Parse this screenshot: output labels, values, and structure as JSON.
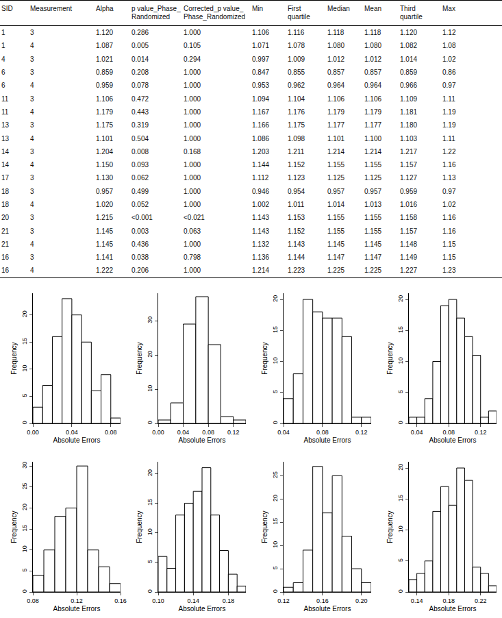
{
  "table": {
    "columns": [
      "SID",
      "Measurement",
      "Alpha",
      "p value_Phase_ Randomized",
      "Corrected_p value_ Phase_Randomized",
      "Min",
      "First quartile",
      "Median",
      "Mean",
      "Third quartile",
      "Max"
    ],
    "rows": [
      [
        "1",
        "3",
        "1.120",
        "0.286",
        "1.000",
        "1.106",
        "1.116",
        "1.118",
        "1.118",
        "1.120",
        "1.12"
      ],
      [
        "1",
        "4",
        "1.087",
        "0.005",
        "0.105",
        "1.071",
        "1.078",
        "1.080",
        "1.080",
        "1.082",
        "1.08"
      ],
      [
        "4",
        "3",
        "1.021",
        "0.014",
        "0.294",
        "0.997",
        "1.009",
        "1.012",
        "1.012",
        "1.014",
        "1.02"
      ],
      [
        "6",
        "3",
        "0.859",
        "0.208",
        "1.000",
        "0.847",
        "0.855",
        "0.857",
        "0.857",
        "0.859",
        "0.86"
      ],
      [
        "6",
        "4",
        "0.959",
        "0.078",
        "1.000",
        "0.953",
        "0.962",
        "0.964",
        "0.964",
        "0.966",
        "0.97"
      ],
      [
        "11",
        "3",
        "1.106",
        "0.472",
        "1.000",
        "1.094",
        "1.104",
        "1.106",
        "1.106",
        "1.109",
        "1.11"
      ],
      [
        "11",
        "4",
        "1.179",
        "0.443",
        "1.000",
        "1.167",
        "1.176",
        "1.179",
        "1.179",
        "1.181",
        "1.19"
      ],
      [
        "13",
        "3",
        "1.175",
        "0.319",
        "1.000",
        "1.166",
        "1.175",
        "1.177",
        "1.177",
        "1.180",
        "1.19"
      ],
      [
        "13",
        "4",
        "1.101",
        "0.504",
        "1.000",
        "1.086",
        "1.098",
        "1.101",
        "1.100",
        "1.103",
        "1.11"
      ],
      [
        "14",
        "3",
        "1.204",
        "0.008",
        "0.168",
        "1.203",
        "1.211",
        "1.214",
        "1.214",
        "1.217",
        "1.22"
      ],
      [
        "14",
        "4",
        "1.150",
        "0.093",
        "1.000",
        "1.144",
        "1.152",
        "1.155",
        "1.155",
        "1.157",
        "1.16"
      ],
      [
        "17",
        "3",
        "1.130",
        "0.062",
        "1.000",
        "1.112",
        "1.123",
        "1.125",
        "1.125",
        "1.127",
        "1.13"
      ],
      [
        "18",
        "3",
        "0.957",
        "0.499",
        "1.000",
        "0.946",
        "0.954",
        "0.957",
        "0.957",
        "0.959",
        "0.97"
      ],
      [
        "18",
        "4",
        "1.020",
        "0.052",
        "1.000",
        "1.002",
        "1.011",
        "1.014",
        "1.013",
        "1.016",
        "1.02"
      ],
      [
        "20",
        "3",
        "1.215",
        "<0.001",
        "<0.021",
        "1.143",
        "1.153",
        "1.155",
        "1.155",
        "1.158",
        "1.16"
      ],
      [
        "21",
        "3",
        "1.145",
        "0.003",
        "0.063",
        "1.143",
        "1.152",
        "1.155",
        "1.155",
        "1.157",
        "1.16"
      ],
      [
        "21",
        "4",
        "1.145",
        "0.436",
        "1.000",
        "1.132",
        "1.143",
        "1.145",
        "1.145",
        "1.148",
        "1.15"
      ],
      [
        "16",
        "3",
        "1.141",
        "0.038",
        "0.798",
        "1.136",
        "1.144",
        "1.147",
        "1.147",
        "1.149",
        "1.15"
      ],
      [
        "16",
        "4",
        "1.222",
        "0.206",
        "1.000",
        "1.214",
        "1.223",
        "1.225",
        "1.225",
        "1.227",
        "1.23"
      ]
    ]
  },
  "chart_data": [
    {
      "type": "histogram",
      "xlabel": "Absolute Errors",
      "ylabel": "Frequency",
      "color": "#ffffff",
      "bins": [
        0.0,
        0.01,
        0.02,
        0.03,
        0.04,
        0.05,
        0.06,
        0.07,
        0.08,
        0.09
      ],
      "counts": [
        3,
        7,
        16,
        23,
        20,
        15,
        6,
        9,
        1
      ],
      "xlim": [
        0,
        0.09
      ],
      "ylim": [
        0,
        24
      ],
      "xticks": [
        {
          "value": 0,
          "label": "0.00"
        },
        0.04,
        0.08
      ],
      "yticks": [
        0,
        5,
        10,
        15,
        20
      ]
    },
    {
      "type": "histogram",
      "xlabel": "Absolute Errors",
      "ylabel": "Frequency",
      "color": "#ffffff",
      "bins": [
        0.0,
        0.02,
        0.04,
        0.06,
        0.08,
        0.1,
        0.12,
        0.14
      ],
      "counts": [
        1,
        6,
        29,
        37,
        23,
        2,
        1
      ],
      "xlim": [
        0,
        0.14
      ],
      "ylim": [
        0,
        38
      ],
      "xticks": [
        {
          "value": 0,
          "label": "0.00"
        },
        0.04,
        0.08,
        0.12
      ],
      "yticks": [
        0,
        10,
        20,
        30
      ]
    },
    {
      "type": "histogram",
      "xlabel": "Absolute Errors",
      "ylabel": "Frequency",
      "color": "#ffffff",
      "bins": [
        0.04,
        0.05,
        0.06,
        0.07,
        0.08,
        0.09,
        0.1,
        0.11,
        0.12,
        0.13
      ],
      "counts": [
        4,
        8,
        20,
        18,
        17,
        17,
        14,
        1,
        1
      ],
      "xlim": [
        0.04,
        0.13
      ],
      "ylim": [
        0,
        21
      ],
      "xticks": [
        0.04,
        0.08,
        0.12
      ],
      "yticks": [
        0,
        5,
        10,
        15,
        20
      ]
    },
    {
      "type": "histogram",
      "xlabel": "Absolute Errors",
      "ylabel": "Frequency",
      "color": "#ffffff",
      "bins": [
        0.03,
        0.04,
        0.05,
        0.06,
        0.07,
        0.08,
        0.09,
        0.1,
        0.11,
        0.12,
        0.13,
        0.14
      ],
      "counts": [
        1,
        1,
        4,
        10,
        19,
        20,
        17,
        14,
        11,
        1,
        2
      ],
      "xlim": [
        0.03,
        0.14
      ],
      "ylim": [
        0,
        21
      ],
      "xticks": [
        0.04,
        0.08,
        0.12
      ],
      "yticks": [
        0,
        5,
        10,
        15,
        20
      ]
    },
    {
      "type": "histogram",
      "xlabel": "Absolute Errors",
      "ylabel": "Frequency",
      "color": "#ffffff",
      "bins": [
        0.08,
        0.09,
        0.1,
        0.11,
        0.12,
        0.13,
        0.14,
        0.15,
        0.16
      ],
      "counts": [
        4,
        10,
        18,
        20,
        30,
        10,
        6,
        2
      ],
      "xlim": [
        0.08,
        0.16
      ],
      "ylim": [
        0,
        31
      ],
      "xticks": [
        0.08,
        0.12,
        0.16
      ],
      "yticks": [
        0,
        5,
        10,
        15,
        20,
        25,
        30
      ]
    },
    {
      "type": "histogram",
      "xlabel": "Absolute Errors",
      "ylabel": "Frequency",
      "color": "#ffffff",
      "bins": [
        0.1,
        0.11,
        0.12,
        0.13,
        0.14,
        0.15,
        0.16,
        0.17,
        0.18,
        0.19,
        0.2
      ],
      "counts": [
        6,
        4,
        13,
        15,
        17,
        21,
        13,
        7,
        3,
        1
      ],
      "xlim": [
        0.1,
        0.2
      ],
      "ylim": [
        0,
        22
      ],
      "xticks": [
        {
          "value": 0.1,
          "label": "0.10"
        },
        0.14,
        0.18
      ],
      "yticks": [
        0,
        5,
        10,
        15,
        20
      ]
    },
    {
      "type": "histogram",
      "xlabel": "Absolute Errors",
      "ylabel": "Frequency",
      "color": "#ffffff",
      "bins": [
        0.12,
        0.13,
        0.14,
        0.15,
        0.16,
        0.17,
        0.18,
        0.19,
        0.2,
        0.21
      ],
      "counts": [
        1,
        2,
        9,
        27,
        17,
        25,
        12,
        5,
        2
      ],
      "xlim": [
        0.12,
        0.21
      ],
      "ylim": [
        0,
        28
      ],
      "xticks": [
        0.12,
        0.16,
        {
          "value": 0.2,
          "label": "0.20"
        }
      ],
      "yticks": [
        0,
        5,
        10,
        15,
        20,
        25
      ]
    },
    {
      "type": "histogram",
      "xlabel": "Absolute Errors",
      "ylabel": "Frequency",
      "color": "#ffffff",
      "bins": [
        0.13,
        0.14,
        0.15,
        0.16,
        0.17,
        0.18,
        0.19,
        0.2,
        0.21,
        0.22,
        0.23,
        0.24
      ],
      "counts": [
        2,
        3,
        5,
        13,
        17,
        14,
        20,
        18,
        4,
        3,
        1
      ],
      "xlim": [
        0.13,
        0.24
      ],
      "ylim": [
        0,
        21
      ],
      "xticks": [
        0.14,
        0.18,
        0.22
      ],
      "yticks": [
        0,
        5,
        10,
        15,
        20
      ]
    }
  ]
}
